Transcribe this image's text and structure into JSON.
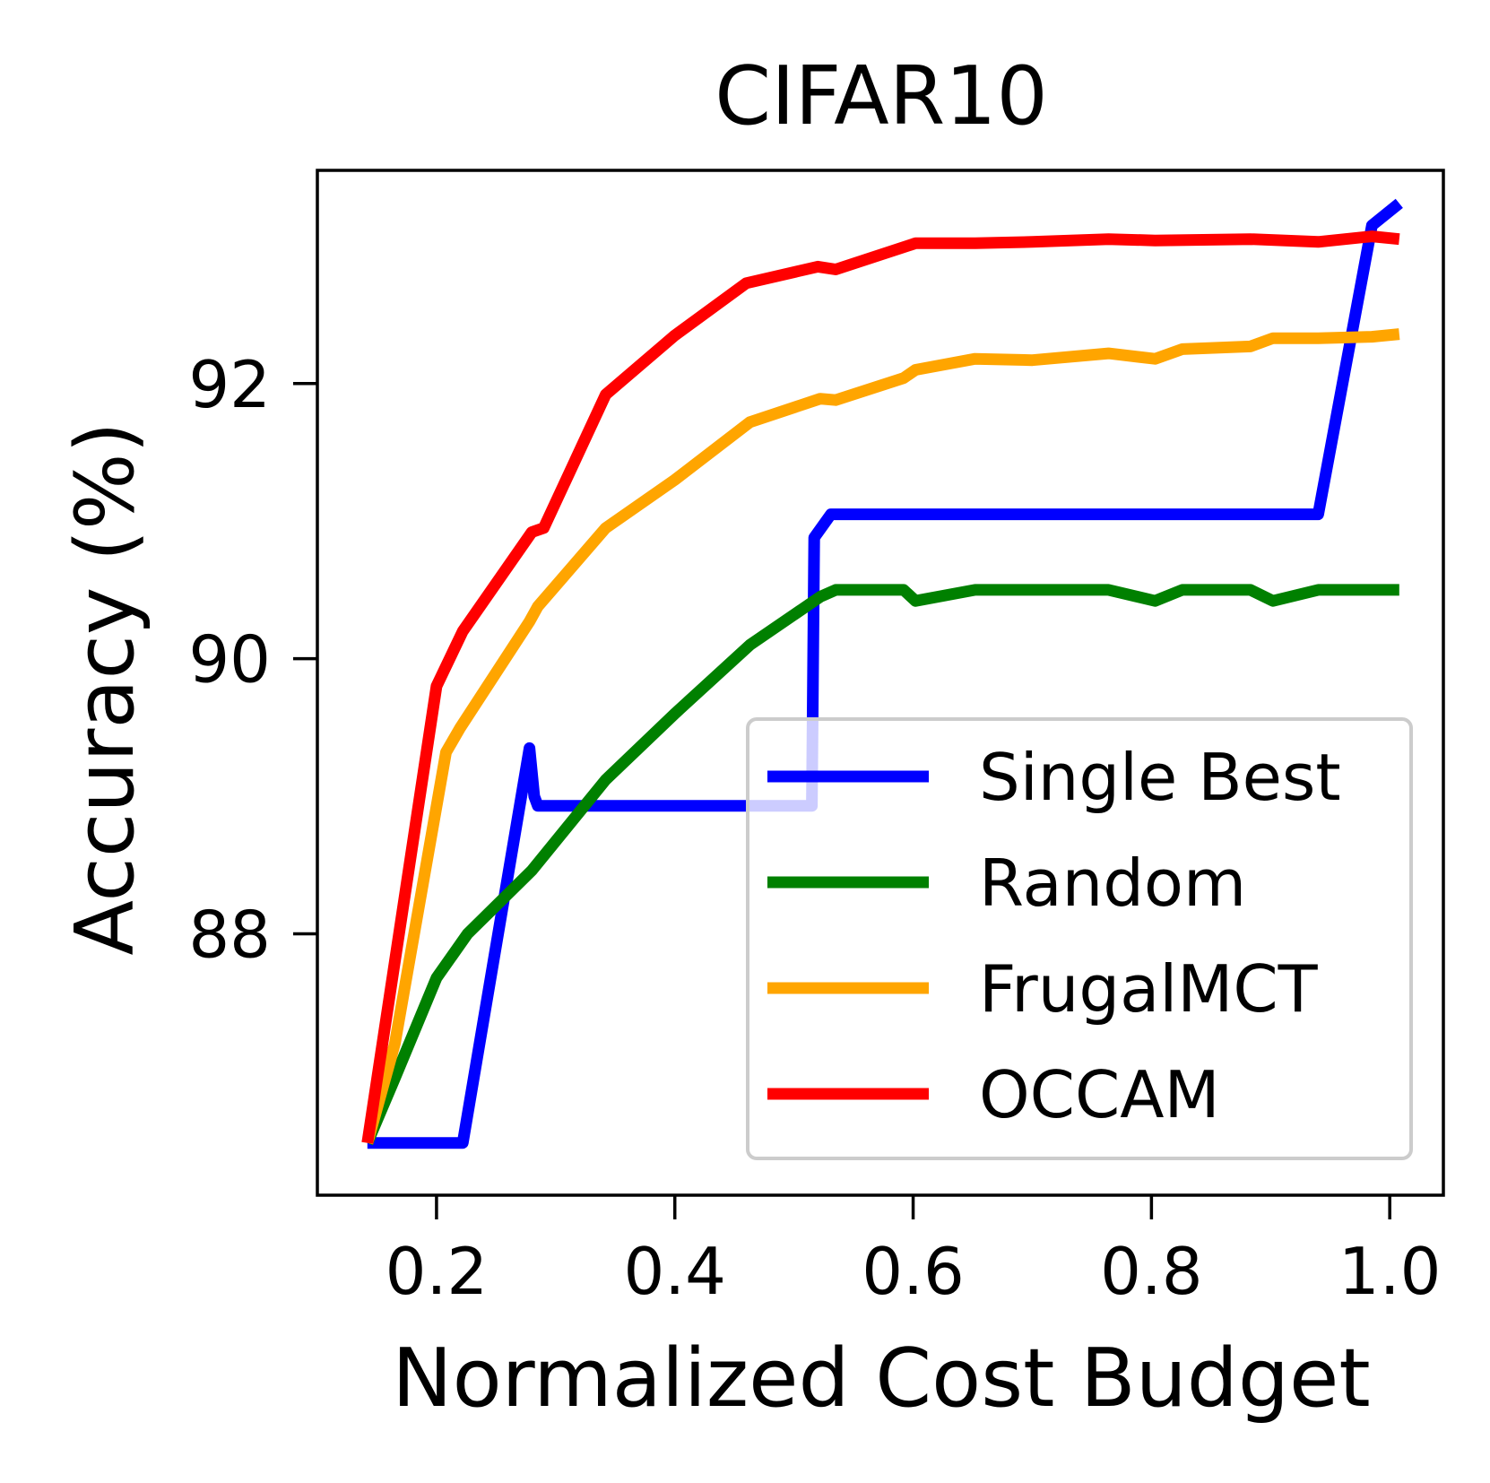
{
  "chart_data": {
    "type": "line",
    "title": "CIFAR10",
    "xlabel": "Normalized Cost Budget",
    "ylabel": "Accuracy (%)",
    "xlim": [
      0.1,
      1.045
    ],
    "ylim": [
      86.1,
      93.55
    ],
    "xticks": [
      0.2,
      0.4,
      0.6,
      0.8,
      1.0
    ],
    "xtick_labels": [
      "0.2",
      "0.4",
      "0.6",
      "0.8",
      "1.0"
    ],
    "yticks": [
      88,
      90,
      92
    ],
    "ytick_labels": [
      "88",
      "90",
      "92"
    ],
    "grid": false,
    "legend_position": "lower-right",
    "series": [
      {
        "name": "Single Best",
        "color": "#0000ff",
        "x": [
          0.142,
          0.222,
          0.278,
          0.282,
          0.285,
          0.5,
          0.515,
          0.517,
          0.531,
          0.94,
          0.985,
          1.008
        ],
        "y": [
          86.48,
          86.48,
          89.35,
          89.0,
          88.93,
          88.93,
          88.93,
          90.88,
          91.05,
          91.05,
          93.15,
          93.31
        ]
      },
      {
        "name": "Random",
        "color": "#008000",
        "x": [
          0.142,
          0.165,
          0.2,
          0.226,
          0.28,
          0.342,
          0.4,
          0.463,
          0.522,
          0.535,
          0.592,
          0.602,
          0.652,
          0.7,
          0.764,
          0.803,
          0.826,
          0.883,
          0.902,
          0.94,
          1.008
        ],
        "y": [
          86.48,
          86.95,
          87.68,
          88.0,
          88.46,
          89.12,
          89.6,
          90.1,
          90.45,
          90.5,
          90.5,
          90.42,
          90.5,
          90.5,
          90.5,
          90.42,
          90.5,
          90.5,
          90.42,
          90.5,
          90.5
        ]
      },
      {
        "name": "FrugalMCT",
        "color": "#ffa500",
        "x": [
          0.142,
          0.165,
          0.208,
          0.22,
          0.278,
          0.285,
          0.342,
          0.4,
          0.463,
          0.522,
          0.535,
          0.592,
          0.602,
          0.652,
          0.7,
          0.764,
          0.803,
          0.826,
          0.883,
          0.902,
          0.94,
          0.985,
          1.008
        ],
        "y": [
          86.48,
          87.2,
          89.32,
          89.5,
          90.27,
          90.38,
          90.95,
          91.3,
          91.72,
          91.89,
          91.88,
          92.04,
          92.1,
          92.18,
          92.17,
          92.22,
          92.18,
          92.25,
          92.27,
          92.33,
          92.33,
          92.34,
          92.36
        ]
      },
      {
        "name": "OCCAM",
        "color": "#ff0000",
        "x": [
          0.142,
          0.2,
          0.222,
          0.28,
          0.29,
          0.342,
          0.4,
          0.46,
          0.52,
          0.535,
          0.602,
          0.652,
          0.7,
          0.764,
          0.803,
          0.883,
          0.94,
          0.985,
          1.008
        ],
        "y": [
          86.48,
          89.8,
          90.2,
          90.92,
          90.95,
          91.92,
          92.35,
          92.73,
          92.85,
          92.83,
          93.02,
          93.02,
          93.03,
          93.05,
          93.04,
          93.05,
          93.03,
          93.07,
          93.05
        ]
      }
    ]
  }
}
